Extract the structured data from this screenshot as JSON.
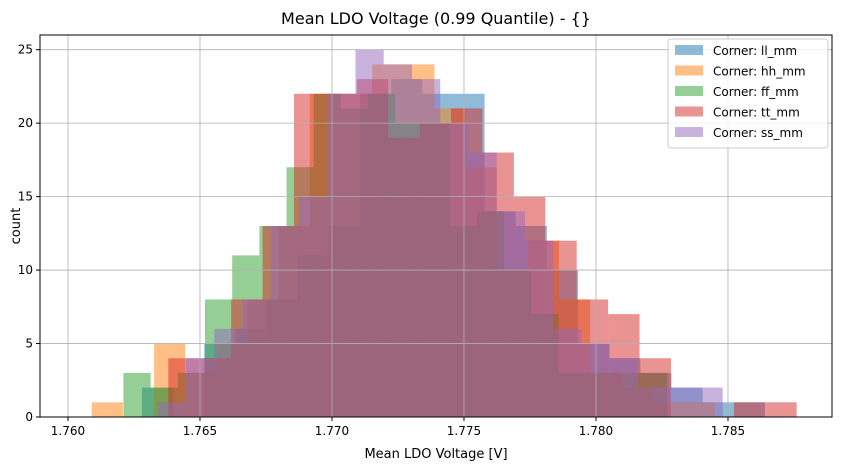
{
  "chart_data": {
    "type": "histogram",
    "title": "Mean LDO Voltage (0.99 Quantile) - {}",
    "xlabel": "Mean LDO Voltage [V]",
    "ylabel": "count",
    "xlim": [
      1.75894,
      1.78894
    ],
    "ylim": [
      0,
      26
    ],
    "xticks": [
      1.76,
      1.765,
      1.77,
      1.775,
      1.78,
      1.785
    ],
    "xtick_labels": [
      "1.760",
      "1.765",
      "1.770",
      "1.775",
      "1.780",
      "1.785"
    ],
    "yticks": [
      0,
      5,
      10,
      15,
      20,
      25
    ],
    "ytick_labels": [
      "0",
      "5",
      "10",
      "15",
      "20",
      "25"
    ],
    "grid": true,
    "legend_position": "top-right",
    "bar_alpha": 0.5,
    "series": [
      {
        "name": "Corner: ll_mm",
        "color": "#1f77b4",
        "bin_start": 1.7628,
        "bin_width": 0.00118,
        "counts": [
          2,
          0,
          5,
          6,
          8,
          11,
          13,
          22,
          23,
          22,
          22,
          14,
          13,
          10,
          5,
          4,
          3,
          2,
          1,
          1
        ]
      },
      {
        "name": "Corner: hh_mm",
        "color": "#ff7f0e",
        "bin_start": 1.7609,
        "bin_width": 0.00118,
        "counts": [
          1,
          0,
          5,
          3,
          5,
          8,
          13,
          22,
          22,
          24,
          24,
          21,
          17,
          10,
          12,
          8,
          3,
          2,
          1,
          1
        ]
      },
      {
        "name": "Corner: ff_mm",
        "color": "#2ca02c",
        "bin_start": 1.7621,
        "bin_width": 0.00103,
        "counts": [
          3,
          2,
          3,
          8,
          11,
          13,
          17,
          22,
          21,
          22,
          20,
          20,
          13,
          14,
          10,
          7,
          3,
          3,
          3,
          3
        ]
      },
      {
        "name": "Corner: tt_mm",
        "color": "#d62728",
        "bin_start": 1.7638,
        "bin_width": 0.00119,
        "counts": [
          4,
          4,
          8,
          13,
          22,
          22,
          23,
          19,
          20,
          21,
          18,
          15,
          12,
          8,
          7,
          4,
          0,
          0,
          1,
          1
        ]
      },
      {
        "name": "Corner: ss_mm",
        "color": "#9467bd",
        "bin_start": 1.7634,
        "bin_width": 0.00107,
        "counts": [
          1,
          4,
          6,
          8,
          13,
          15,
          22,
          25,
          24,
          23,
          20,
          18,
          14,
          12,
          6,
          5,
          4,
          2,
          2,
          2
        ]
      }
    ]
  }
}
